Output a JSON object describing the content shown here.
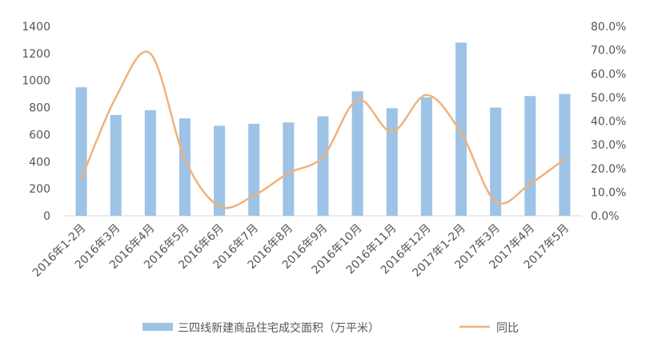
{
  "chart_data": {
    "type": "bar",
    "categories": [
      "2016年1-2月",
      "2016年3月",
      "2016年4月",
      "2016年5月",
      "2016年6月",
      "2016年7月",
      "2016年8月",
      "2016年9月",
      "2016年10月",
      "2016年11月",
      "2016年12月",
      "2017年1-2月",
      "2017年3月",
      "2017年4月",
      "2017年5月"
    ],
    "series": [
      {
        "name": "三四线新建商品住宅成交面积（万平米）",
        "type": "bar",
        "axis": "left",
        "color": "#9dc3e6",
        "values": [
          950,
          745,
          780,
          720,
          665,
          680,
          690,
          735,
          920,
          795,
          875,
          1280,
          800,
          885,
          900
        ]
      },
      {
        "name": "同比",
        "type": "line",
        "axis": "right",
        "color": "#f0b27a",
        "smooth": true,
        "values": [
          15.5,
          50.0,
          68.5,
          24.0,
          4.0,
          8.5,
          18.0,
          25.0,
          49.0,
          35.5,
          51.0,
          35.0,
          6.0,
          13.5,
          24.0
        ]
      }
    ],
    "y_left": {
      "lim": [
        0,
        1400
      ],
      "ticks": [
        "0",
        "200",
        "400",
        "600",
        "800",
        "1000",
        "1200",
        "1400"
      ]
    },
    "y_right": {
      "lim": [
        0,
        80
      ],
      "ticks": [
        "0.0%",
        "10.0%",
        "20.0%",
        "30.0%",
        "40.0%",
        "50.0%",
        "60.0%",
        "70.0%",
        "80.0%"
      ]
    },
    "grid": false,
    "legend_position": "bottom",
    "title": "",
    "xlabel": "",
    "ylabel": ""
  }
}
